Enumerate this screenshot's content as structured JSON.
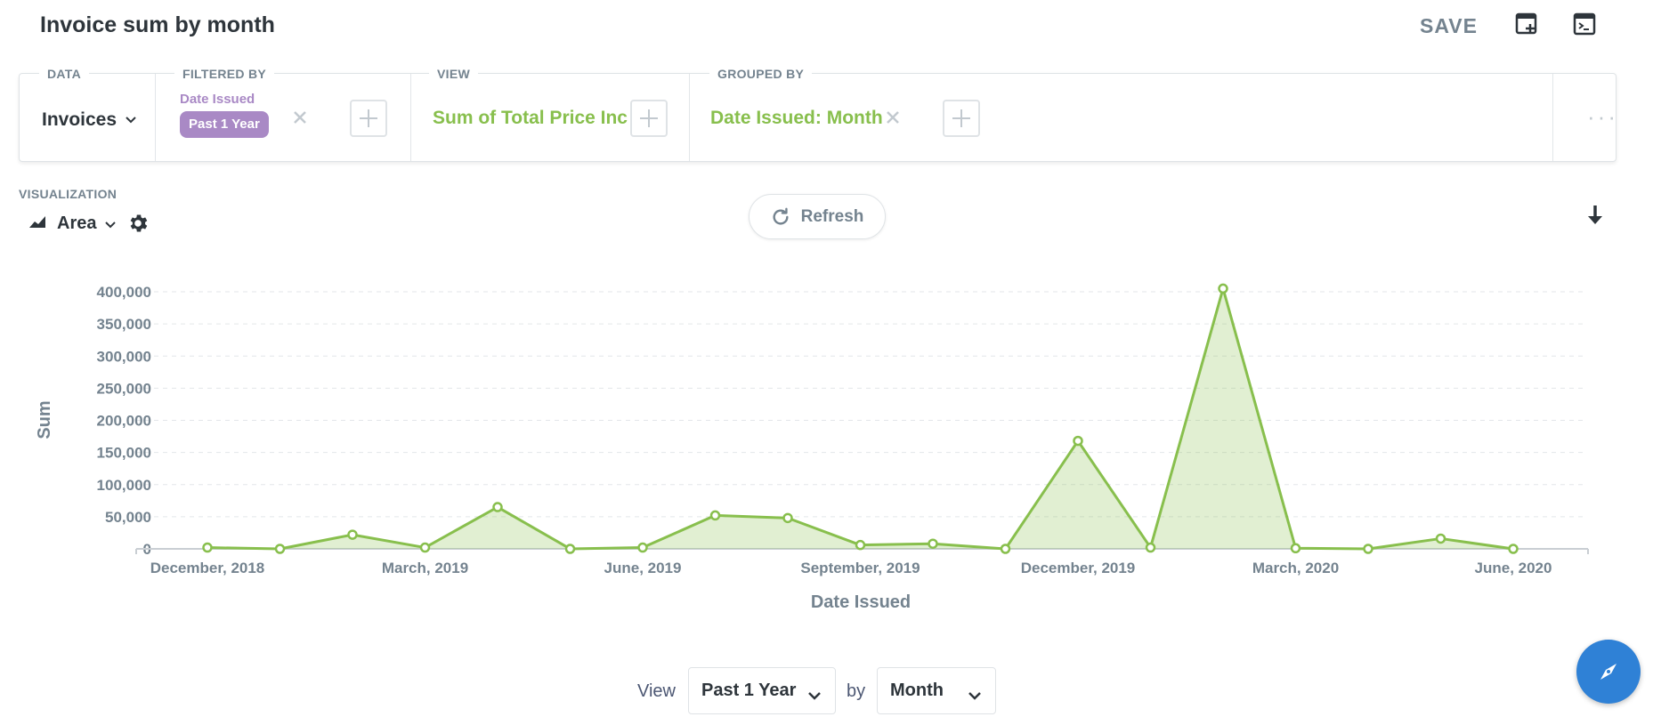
{
  "header": {
    "title": "Invoice sum by month",
    "save_label": "SAVE",
    "icons": [
      "add-to-dashboard-icon",
      "sql-console-icon"
    ]
  },
  "query_builder": {
    "data": {
      "label": "DATA",
      "source": "Invoices"
    },
    "filtered_by": {
      "label": "FILTERED BY",
      "field": "Date Issued",
      "value": "Past 1 Year"
    },
    "view": {
      "label": "VIEW",
      "metric": "Sum of Total Price Inc"
    },
    "grouped_by": {
      "label": "GROUPED BY",
      "value": "Date Issued: Month"
    }
  },
  "visualization": {
    "label": "VISUALIZATION",
    "type": "Area",
    "refresh_label": "Refresh"
  },
  "chart_data": {
    "type": "area",
    "xlabel": "Date Issued",
    "ylabel": "Sum",
    "x_tick_labels": [
      "December, 2018",
      "March, 2019",
      "June, 2019",
      "September, 2019",
      "December, 2019",
      "March, 2020",
      "June, 2020"
    ],
    "y_ticks": [
      0,
      50000,
      100000,
      150000,
      200000,
      250000,
      300000,
      350000,
      400000
    ],
    "y_tick_labels": [
      "0",
      "50,000",
      "100,000",
      "150,000",
      "200,000",
      "250,000",
      "300,000",
      "350,000",
      "400,000"
    ],
    "ylim": [
      0,
      400000
    ],
    "grid": true,
    "color": "#88bf4d",
    "x": [
      "2018-12",
      "2019-01",
      "2019-02",
      "2019-03",
      "2019-04",
      "2019-05",
      "2019-06",
      "2019-07",
      "2019-08",
      "2019-09",
      "2019-10",
      "2019-11",
      "2019-12",
      "2020-01",
      "2020-02",
      "2020-03",
      "2020-04",
      "2020-05",
      "2020-06"
    ],
    "values": [
      2000,
      0,
      22000,
      2000,
      65000,
      0,
      2000,
      52000,
      48000,
      6000,
      8000,
      0,
      168000,
      2000,
      405000,
      1000,
      0,
      16000,
      0
    ]
  },
  "footer": {
    "view_label": "View",
    "period_value": "Past 1 Year",
    "by_label": "by",
    "unit_value": "Month"
  }
}
